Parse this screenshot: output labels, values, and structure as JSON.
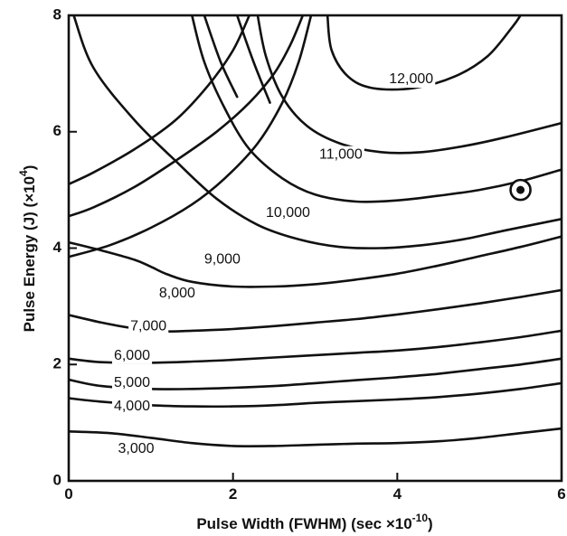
{
  "chart_data": {
    "type": "contour",
    "xlabel": "Pulse Width (FWHM) (sec ×10",
    "xlabel_exp": "-10",
    "xlabel_close": ")",
    "ylabel": "Pulse Energy (J) (×10",
    "ylabel_exp": "4",
    "ylabel_close": ")",
    "xlim": [
      0,
      6
    ],
    "ylim": [
      0,
      8
    ],
    "xticks": [
      {
        "value": 0,
        "label": "0"
      },
      {
        "value": 2,
        "label": "2"
      },
      {
        "value": 4,
        "label": "4"
      },
      {
        "value": 6,
        "label": "6"
      }
    ],
    "yticks": [
      {
        "value": 0,
        "label": "0"
      },
      {
        "value": 2,
        "label": "2"
      },
      {
        "value": 4,
        "label": "4"
      },
      {
        "value": 6,
        "label": "6"
      },
      {
        "value": 8,
        "label": "8"
      }
    ],
    "grid": false,
    "contours": [
      {
        "label": "3,000",
        "label_pos": [
          0.6,
          0.55
        ],
        "points": [
          [
            0,
            0.85
          ],
          [
            0.5,
            0.82
          ],
          [
            1,
            0.74
          ],
          [
            1.5,
            0.65
          ],
          [
            2,
            0.6
          ],
          [
            2.5,
            0.6
          ],
          [
            3,
            0.62
          ],
          [
            3.5,
            0.64
          ],
          [
            4,
            0.65
          ],
          [
            4.5,
            0.68
          ],
          [
            5,
            0.74
          ],
          [
            5.5,
            0.82
          ],
          [
            6,
            0.9
          ]
        ]
      },
      {
        "label": "4,000",
        "label_pos": [
          0.55,
          1.28
        ],
        "points": [
          [
            0,
            1.42
          ],
          [
            0.4,
            1.36
          ],
          [
            1,
            1.3
          ],
          [
            1.5,
            1.28
          ],
          [
            2,
            1.28
          ],
          [
            2.5,
            1.3
          ],
          [
            3,
            1.34
          ],
          [
            3.5,
            1.37
          ],
          [
            4,
            1.4
          ],
          [
            4.5,
            1.44
          ],
          [
            5,
            1.5
          ],
          [
            5.5,
            1.58
          ],
          [
            6,
            1.68
          ]
        ]
      },
      {
        "label": "5,000",
        "label_pos": [
          0.55,
          1.68
        ],
        "points": [
          [
            0,
            1.74
          ],
          [
            0.4,
            1.63
          ],
          [
            1,
            1.58
          ],
          [
            1.5,
            1.58
          ],
          [
            2,
            1.6
          ],
          [
            2.5,
            1.63
          ],
          [
            3,
            1.68
          ],
          [
            3.5,
            1.73
          ],
          [
            4,
            1.78
          ],
          [
            4.5,
            1.84
          ],
          [
            5,
            1.92
          ],
          [
            5.5,
            2.0
          ],
          [
            6,
            2.1
          ]
        ]
      },
      {
        "label": "6,000",
        "label_pos": [
          0.55,
          2.15
        ],
        "points": [
          [
            0,
            2.1
          ],
          [
            0.4,
            2.04
          ],
          [
            1,
            2.03
          ],
          [
            1.5,
            2.05
          ],
          [
            2,
            2.08
          ],
          [
            2.5,
            2.12
          ],
          [
            3,
            2.16
          ],
          [
            3.5,
            2.2
          ],
          [
            4,
            2.24
          ],
          [
            4.5,
            2.3
          ],
          [
            5,
            2.38
          ],
          [
            5.5,
            2.47
          ],
          [
            6,
            2.58
          ]
        ]
      },
      {
        "label": "7,000",
        "label_pos": [
          0.75,
          2.65
        ],
        "points": [
          [
            0,
            2.85
          ],
          [
            0.4,
            2.72
          ],
          [
            0.8,
            2.62
          ],
          [
            1.2,
            2.57
          ],
          [
            1.5,
            2.58
          ],
          [
            2,
            2.61
          ],
          [
            2.5,
            2.66
          ],
          [
            3,
            2.72
          ],
          [
            3.5,
            2.78
          ],
          [
            4,
            2.86
          ],
          [
            4.5,
            2.95
          ],
          [
            5,
            3.05
          ],
          [
            5.5,
            3.16
          ],
          [
            6,
            3.28
          ]
        ]
      },
      {
        "label": "8,000",
        "label_pos": [
          1.1,
          3.22
        ],
        "points": [
          [
            0,
            4.1
          ],
          [
            0.4,
            3.96
          ],
          [
            0.8,
            3.8
          ],
          [
            1,
            3.68
          ],
          [
            1.2,
            3.55
          ],
          [
            1.5,
            3.42
          ],
          [
            2,
            3.34
          ],
          [
            2.5,
            3.34
          ],
          [
            3,
            3.38
          ],
          [
            3.5,
            3.46
          ],
          [
            4,
            3.56
          ],
          [
            4.5,
            3.7
          ],
          [
            5,
            3.86
          ],
          [
            5.5,
            4.02
          ],
          [
            6,
            4.2
          ]
        ]
      },
      {
        "label": "9,000",
        "label_pos": [
          1.65,
          3.8
        ],
        "points": [
          [
            0.06,
            8
          ],
          [
            0.3,
            7.1
          ],
          [
            0.8,
            6.2
          ],
          [
            1.3,
            5.5
          ],
          [
            1.8,
            4.85
          ],
          [
            2.3,
            4.4
          ],
          [
            2.8,
            4.15
          ],
          [
            3.3,
            4.02
          ],
          [
            3.8,
            4.0
          ],
          [
            4.3,
            4.05
          ],
          [
            4.8,
            4.15
          ],
          [
            5.3,
            4.3
          ],
          [
            6,
            4.5
          ]
        ]
      },
      {
        "label": "10,000",
        "label_pos": [
          2.4,
          4.6
        ],
        "points": [
          [
            1.5,
            8
          ],
          [
            1.65,
            7.2
          ],
          [
            1.9,
            6.4
          ],
          [
            2.2,
            5.7
          ],
          [
            2.6,
            5.2
          ],
          [
            3,
            4.92
          ],
          [
            3.5,
            4.8
          ],
          [
            4,
            4.82
          ],
          [
            4.5,
            4.9
          ],
          [
            5,
            5.0
          ],
          [
            5.5,
            5.15
          ],
          [
            6,
            5.35
          ]
        ]
      },
      {
        "label": "11,000",
        "label_pos": [
          3.05,
          5.6
        ],
        "points": [
          [
            2.3,
            8
          ],
          [
            2.4,
            7.3
          ],
          [
            2.6,
            6.6
          ],
          [
            2.9,
            6.1
          ],
          [
            3.3,
            5.8
          ],
          [
            3.8,
            5.65
          ],
          [
            4.3,
            5.65
          ],
          [
            4.8,
            5.75
          ],
          [
            5.3,
            5.9
          ],
          [
            6,
            6.15
          ]
        ]
      },
      {
        "label": "12,000",
        "label_pos": [
          3.9,
          6.9
        ],
        "points": [
          [
            3.15,
            8
          ],
          [
            3.2,
            7.4
          ],
          [
            3.4,
            6.95
          ],
          [
            3.7,
            6.75
          ],
          [
            4.2,
            6.75
          ],
          [
            4.7,
            6.95
          ],
          [
            5.1,
            7.3
          ],
          [
            5.4,
            7.8
          ],
          [
            5.5,
            8
          ]
        ]
      },
      {
        "label": "",
        "label_pos": null,
        "points": [
          [
            1.65,
            8
          ],
          [
            1.85,
            7.2
          ],
          [
            2.05,
            6.6
          ]
        ]
      },
      {
        "label": "",
        "label_pos": null,
        "points": [
          [
            2.05,
            8
          ],
          [
            2.25,
            7.2
          ],
          [
            2.45,
            6.5
          ]
        ]
      },
      {
        "label": "",
        "label_pos": null,
        "points": [
          [
            0,
            4.55
          ],
          [
            0.3,
            4.7
          ],
          [
            0.8,
            5.05
          ],
          [
            1.3,
            5.5
          ],
          [
            1.8,
            6.0
          ],
          [
            2.2,
            6.5
          ],
          [
            2.5,
            7.0
          ],
          [
            2.7,
            7.5
          ],
          [
            2.85,
            8
          ]
        ]
      },
      {
        "label": "",
        "label_pos": null,
        "points": [
          [
            0,
            5.1
          ],
          [
            0.3,
            5.3
          ],
          [
            0.8,
            5.7
          ],
          [
            1.3,
            6.2
          ],
          [
            1.7,
            6.8
          ],
          [
            2.0,
            7.4
          ],
          [
            2.2,
            8
          ]
        ]
      },
      {
        "label": "",
        "label_pos": null,
        "points": [
          [
            0,
            3.85
          ],
          [
            0.5,
            4.05
          ],
          [
            1.0,
            4.35
          ],
          [
            1.5,
            4.75
          ],
          [
            1.9,
            5.2
          ],
          [
            2.3,
            5.8
          ],
          [
            2.6,
            6.5
          ],
          [
            2.8,
            7.2
          ],
          [
            2.95,
            8
          ]
        ]
      }
    ],
    "marker": {
      "x": 5.5,
      "y": 5.0,
      "style": "circled-dot"
    }
  }
}
